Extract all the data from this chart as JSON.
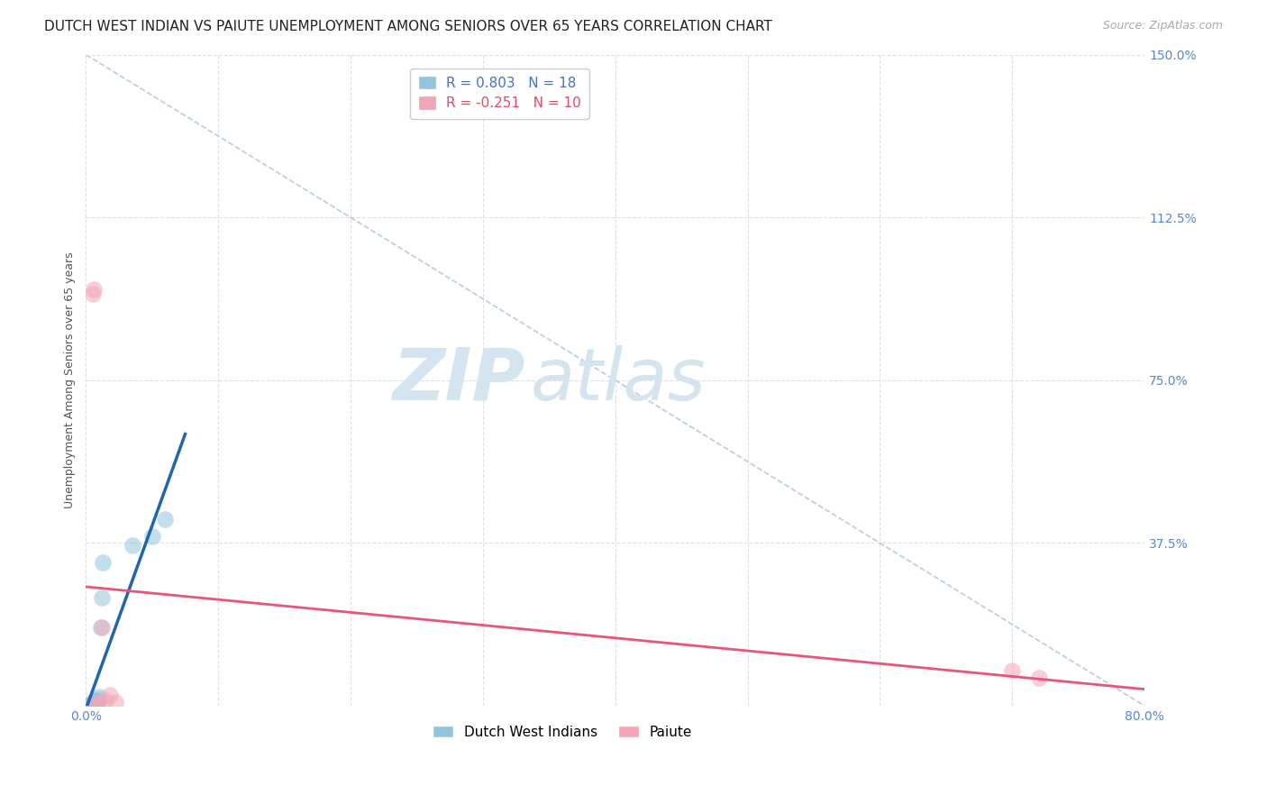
{
  "title": "DUTCH WEST INDIAN VS PAIUTE UNEMPLOYMENT AMONG SENIORS OVER 65 YEARS CORRELATION CHART",
  "source": "Source: ZipAtlas.com",
  "ylabel": "Unemployment Among Seniors over 65 years",
  "xlim": [
    0.0,
    0.8
  ],
  "ylim": [
    0.0,
    1.5
  ],
  "xticks": [
    0.0,
    0.1,
    0.2,
    0.3,
    0.4,
    0.5,
    0.6,
    0.7,
    0.8
  ],
  "xticklabels": [
    "0.0%",
    "",
    "",
    "",
    "",
    "",
    "",
    "",
    "80.0%"
  ],
  "yticks": [
    0.0,
    0.375,
    0.75,
    1.125,
    1.5
  ],
  "yticklabels": [
    "",
    "37.5%",
    "75.0%",
    "112.5%",
    "150.0%"
  ],
  "dutch_x": [
    0.003,
    0.004,
    0.005,
    0.005,
    0.006,
    0.006,
    0.007,
    0.007,
    0.008,
    0.008,
    0.009,
    0.01,
    0.011,
    0.012,
    0.013,
    0.035,
    0.05,
    0.06
  ],
  "dutch_y": [
    0.005,
    0.005,
    0.003,
    0.008,
    0.004,
    0.01,
    0.006,
    0.012,
    0.005,
    0.01,
    0.015,
    0.02,
    0.18,
    0.25,
    0.33,
    0.37,
    0.39,
    0.43
  ],
  "paiute_x": [
    0.005,
    0.006,
    0.008,
    0.01,
    0.012,
    0.015,
    0.018,
    0.022,
    0.7,
    0.72
  ],
  "paiute_y": [
    0.95,
    0.96,
    0.005,
    0.008,
    0.18,
    0.012,
    0.025,
    0.008,
    0.082,
    0.065
  ],
  "dutch_color": "#92C5DE",
  "paiute_color": "#F4A6B8",
  "dutch_line_color": "#2166AC",
  "paiute_line_color": "#E8547A",
  "diag_line_color": "#BBCCDD",
  "R_dutch": 0.803,
  "N_dutch": 18,
  "R_paiute": -0.251,
  "N_paiute": 10,
  "watermark_zip": "ZIP",
  "watermark_atlas": "atlas",
  "watermark_color": "#D5E5F0",
  "grid_color": "#DDDDDD",
  "background_color": "#FFFFFF",
  "title_fontsize": 11,
  "axis_label_fontsize": 9,
  "tick_fontsize": 10,
  "legend_fontsize": 11,
  "source_fontsize": 9,
  "dot_size": 180,
  "dot_alpha": 0.55
}
